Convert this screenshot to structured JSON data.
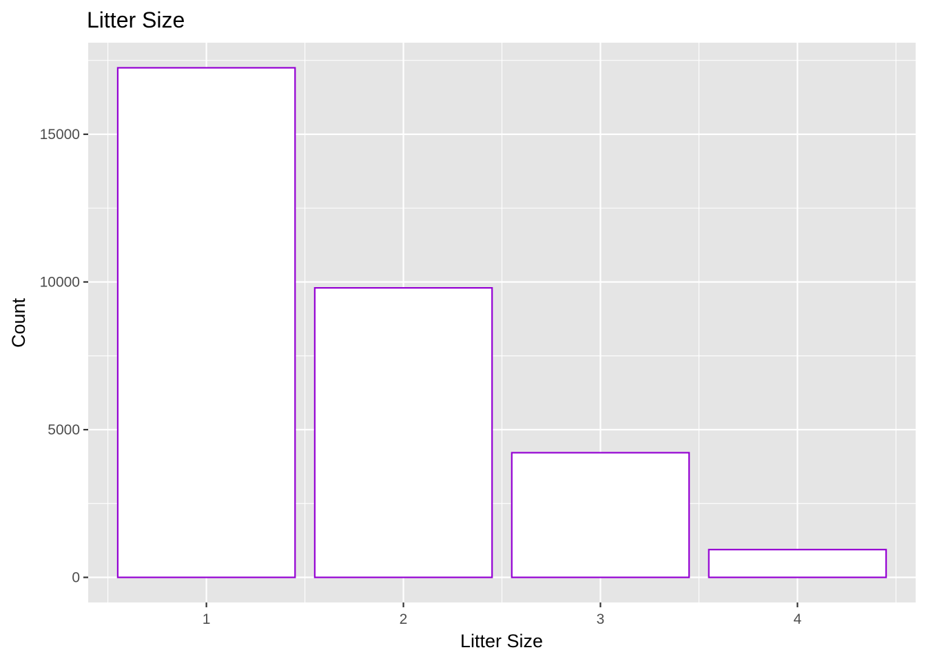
{
  "chart_data": {
    "type": "bar",
    "title": "Litter Size",
    "xlabel": "Litter Size",
    "ylabel": "Count",
    "categories": [
      "1",
      "2",
      "3",
      "4"
    ],
    "values": [
      17250,
      9800,
      4220,
      940
    ],
    "ylim": [
      -850,
      18100
    ],
    "yticks": [
      0,
      5000,
      10000,
      15000
    ],
    "ytick_labels": [
      "0",
      "5000",
      "10000",
      "15000"
    ],
    "grid": true,
    "legend": "none",
    "colors": {
      "panel_background": "#e5e5e5",
      "grid": "#ffffff",
      "bar_fill": "#ffffff",
      "bar_outline": "#9400d3"
    }
  }
}
